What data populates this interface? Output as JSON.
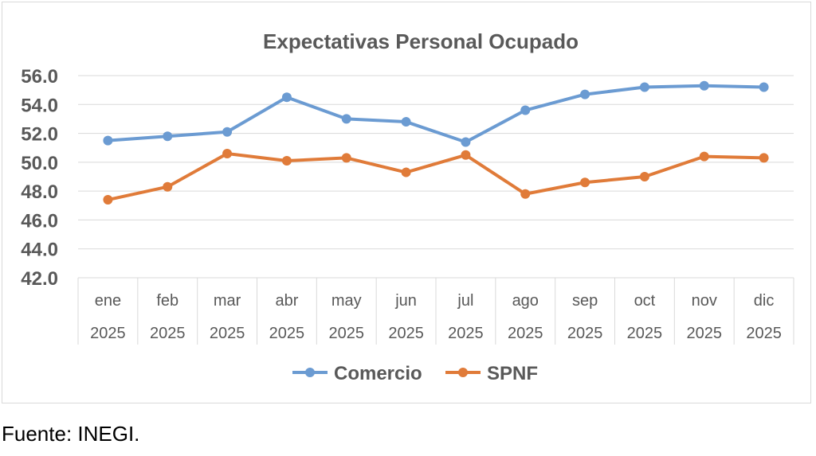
{
  "chart_data": {
    "type": "line",
    "title": "Expectativas Personal Ocupado",
    "categories": [
      {
        "month": "ene",
        "year": "2025"
      },
      {
        "month": "feb",
        "year": "2025"
      },
      {
        "month": "mar",
        "year": "2025"
      },
      {
        "month": "abr",
        "year": "2025"
      },
      {
        "month": "may",
        "year": "2025"
      },
      {
        "month": "jun",
        "year": "2025"
      },
      {
        "month": "jul",
        "year": "2025"
      },
      {
        "month": "ago",
        "year": "2025"
      },
      {
        "month": "sep",
        "year": "2025"
      },
      {
        "month": "oct",
        "year": "2025"
      },
      {
        "month": "nov",
        "year": "2025"
      },
      {
        "month": "dic",
        "year": "2025"
      }
    ],
    "series": [
      {
        "name": "Comercio",
        "color": "#6b9bd2",
        "values": [
          51.5,
          51.8,
          52.1,
          54.5,
          53.0,
          52.8,
          51.4,
          53.6,
          54.7,
          55.2,
          55.3,
          55.2
        ]
      },
      {
        "name": "SPNF",
        "color": "#e07b39",
        "values": [
          47.4,
          48.3,
          50.6,
          50.1,
          50.3,
          49.3,
          50.5,
          47.8,
          48.6,
          49.0,
          50.4,
          50.3
        ]
      }
    ],
    "ylim": [
      42.0,
      56.0
    ],
    "yticks": [
      "42.0",
      "44.0",
      "46.0",
      "48.0",
      "50.0",
      "52.0",
      "54.0",
      "56.0"
    ],
    "xlabel": "",
    "ylabel": "",
    "grid": true,
    "legend_position": "bottom-center"
  },
  "source": "Fuente: INEGI."
}
